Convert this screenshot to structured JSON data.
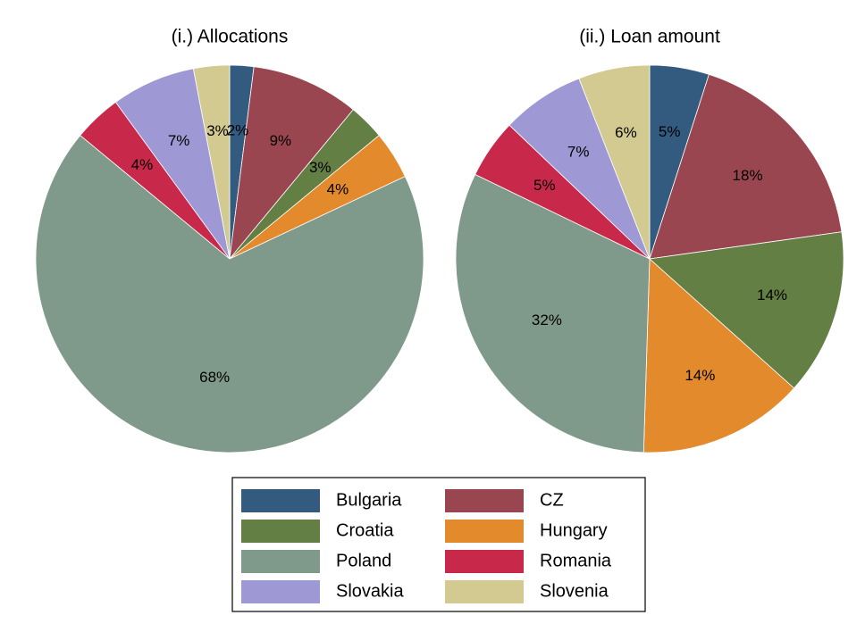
{
  "chart_data": [
    {
      "type": "pie",
      "title": "(i.) Allocations",
      "categories": [
        "Bulgaria",
        "CZ",
        "Croatia",
        "Hungary",
        "Poland",
        "Romania",
        "Slovakia",
        "Slovenia"
      ],
      "values": [
        2,
        9,
        3,
        4,
        68,
        4,
        7,
        3
      ],
      "value_labels": [
        "2%",
        "9%",
        "3%",
        "4%",
        "68%",
        "4%",
        "7%",
        "3%"
      ],
      "colors": [
        "#335a7f",
        "#9a4650",
        "#637f43",
        "#e38a2d",
        "#7f998b",
        "#c8294b",
        "#9e98d4",
        "#d3ca91"
      ]
    },
    {
      "type": "pie",
      "title": "(ii.) Loan amount",
      "categories": [
        "Bulgaria",
        "CZ",
        "Croatia",
        "Hungary",
        "Poland",
        "Romania",
        "Slovakia",
        "Slovenia"
      ],
      "values": [
        5,
        18,
        14,
        14,
        32,
        5,
        7,
        6
      ],
      "value_labels": [
        "5%",
        "18%",
        "14%",
        "14%",
        "32%",
        "5%",
        "7%",
        "6%"
      ],
      "colors": [
        "#335a7f",
        "#9a4650",
        "#637f43",
        "#e38a2d",
        "#7f998b",
        "#c8294b",
        "#9e98d4",
        "#d3ca91"
      ]
    }
  ]
}
